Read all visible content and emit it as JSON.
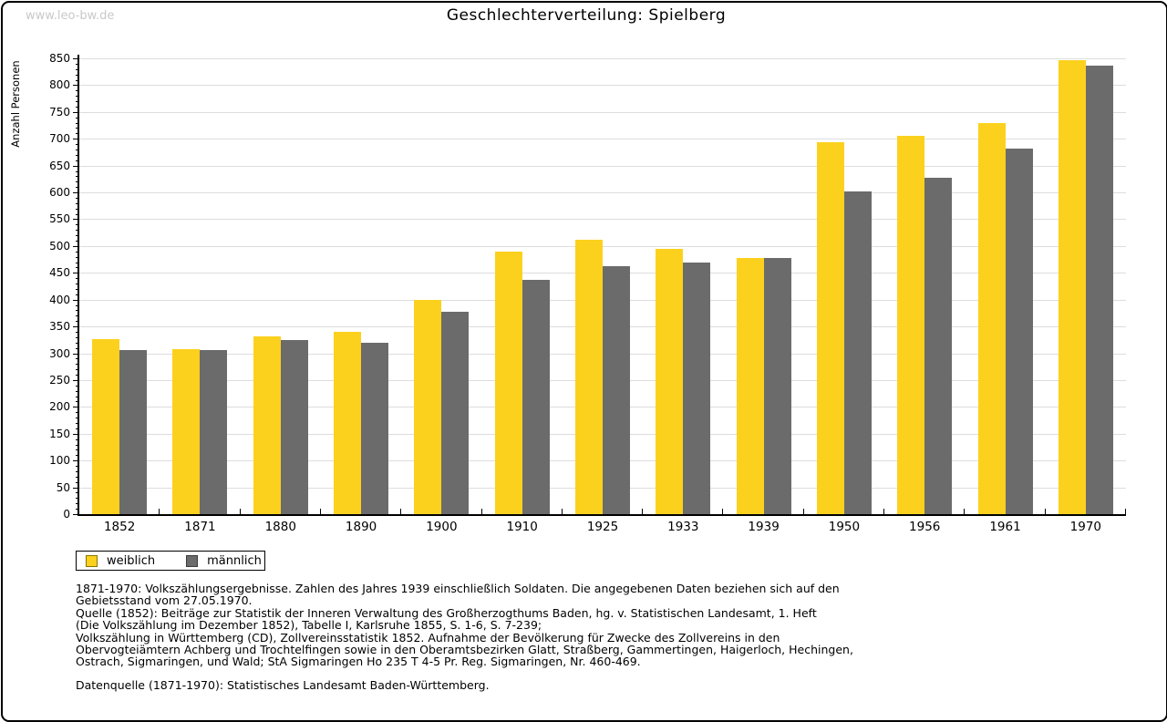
{
  "page": {
    "watermark": "www.leo-bw.de",
    "title": "Geschlechterverteilung: Spielberg"
  },
  "chart_data": {
    "type": "bar",
    "title": "Geschlechterverteilung: Spielberg",
    "xlabel": "",
    "ylabel": "Anzahl Personen",
    "ylim": [
      0,
      850
    ],
    "ytick_step": 50,
    "ytick_minor_step": 10,
    "grid": true,
    "legend_position": "bottom-left",
    "categories": [
      "1852",
      "1871",
      "1880",
      "1890",
      "1900",
      "1910",
      "1925",
      "1933",
      "1939",
      "1950",
      "1956",
      "1961",
      "1970"
    ],
    "series": [
      {
        "name": "weiblich",
        "color": "#FCD11E",
        "values": [
          326,
          308,
          332,
          340,
          400,
          489,
          511,
          494,
          477,
          693,
          705,
          730,
          846
        ]
      },
      {
        "name": "männlich",
        "color": "#6B6B6B",
        "values": [
          306,
          306,
          324,
          319,
          378,
          437,
          462,
          469,
          477,
          601,
          627,
          681,
          836
        ]
      }
    ]
  },
  "legend": {
    "items": [
      {
        "label": "weiblich",
        "color": "#FCD11E",
        "border": "#8a7400"
      },
      {
        "label": "männlich",
        "color": "#6B6B6B",
        "border": "#3c3c3c"
      }
    ]
  },
  "footnotes": {
    "lines": [
      "1871-1970: Volkszählungsergebnisse. Zahlen des Jahres 1939 einschließlich Soldaten. Die angegebenen Daten beziehen sich auf den",
      "Gebietsstand vom 27.05.1970.",
      "Quelle (1852): Beiträge zur Statistik der Inneren Verwaltung des Großherzogthums Baden, hg. v. Statistischen Landesamt, 1. Heft",
      "(Die Volkszählung im Dezember 1852), Tabelle I, Karlsruhe 1855, S. 1-6, S. 7-239;",
      "Volkszählung in Württemberg (CD), Zollvereinsstatistik 1852. Aufnahme der Bevölkerung für Zwecke des Zollvereins in den",
      "Obervogteiämtern Achberg und Trochtelfingen sowie in den Oberamtsbezirken Glatt, Straßberg, Gammertingen, Haigerloch, Hechingen,",
      "Ostrach, Sigmaringen, und Wald; StA Sigmaringen Ho 235 T 4-5 Pr. Reg. Sigmaringen, Nr. 460-469."
    ],
    "datasource": "Datenquelle (1871-1970): Statistisches Landesamt Baden-Württemberg."
  },
  "colors": {
    "gridline": "#DDDDDD",
    "axis": "#000000",
    "watermark": "#C9C9C9",
    "frame_border": "#000000"
  }
}
